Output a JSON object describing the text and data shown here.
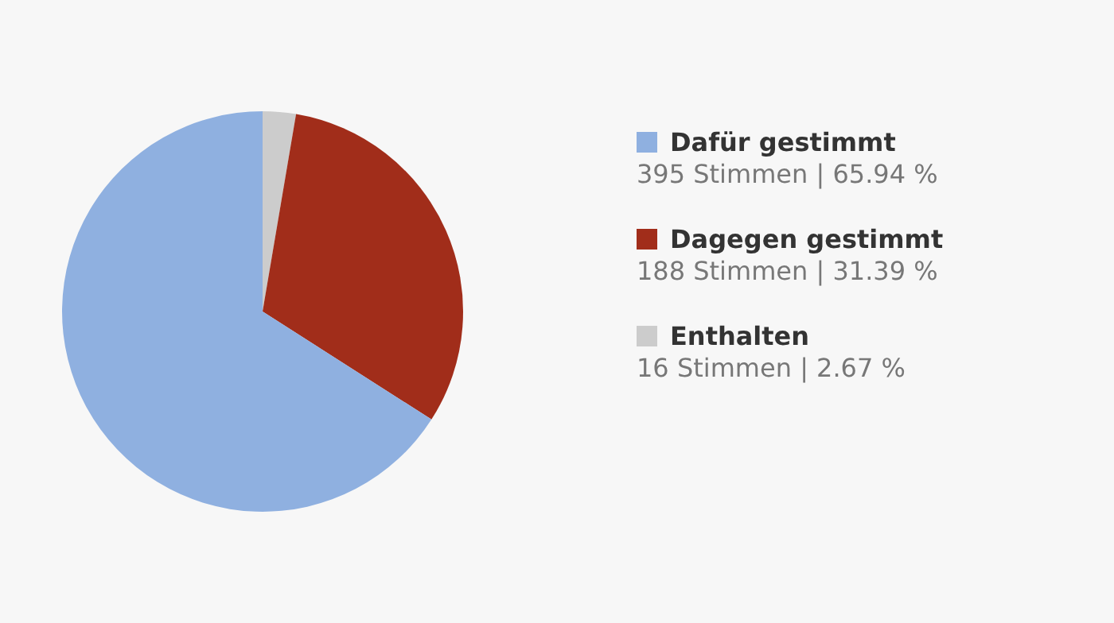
{
  "chart_data": {
    "type": "pie",
    "categories": [
      "Dafür gestimmt",
      "Dagegen gestimmt",
      "Enthalten"
    ],
    "values": [
      395,
      188,
      16
    ],
    "colors": [
      "#8fb0e0",
      "#a12d1a",
      "#cccccc"
    ],
    "value_labels": [
      "395 Stimmen | 65.94 %",
      "188 Stimmen | 31.39 %",
      "16 Stimmen | 2.67 %"
    ],
    "legend": "right"
  }
}
